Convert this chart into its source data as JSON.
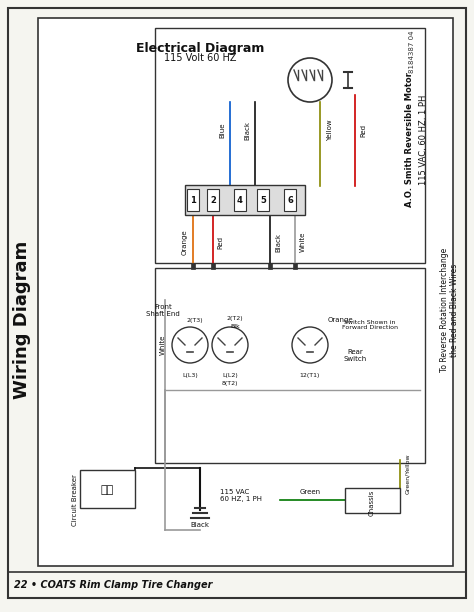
{
  "page_bg": "#f5f5f0",
  "outer_border_color": "#222222",
  "diagram_bg": "#ffffff",
  "title_left": "Wiring Diagram",
  "subtitle_center": "Electrical Diagram",
  "subtitle_sub": "115 Volt 60 HZ",
  "footer_text": "22 • COATS Rim Clamp Tire Changer",
  "part_number": "8184387 04",
  "motor_label1": "A.O. Smith Reversible Motor",
  "motor_label2": "115 VAC, 60 HZ, 1 PH",
  "reverse_label1": "To Reverse Rotation Interchange",
  "reverse_label2": "the Red and Black Wires",
  "rear_switch": "Rear\nSwitch",
  "front_shaft": "Front\nShaft End",
  "circuit_breaker": "Circuit Breaker",
  "power_label": "115 VAC\n60 HZ, 1 PH",
  "chassis": "Chassis",
  "wire_colors": {
    "red": "#cc0000",
    "black": "#111111",
    "white": "#888888",
    "blue": "#0055cc",
    "yellow": "#ccaa00",
    "orange": "#dd6600",
    "green": "#007700",
    "green_yellow": "#88aa00"
  },
  "figsize": [
    4.74,
    6.12
  ],
  "dpi": 100
}
